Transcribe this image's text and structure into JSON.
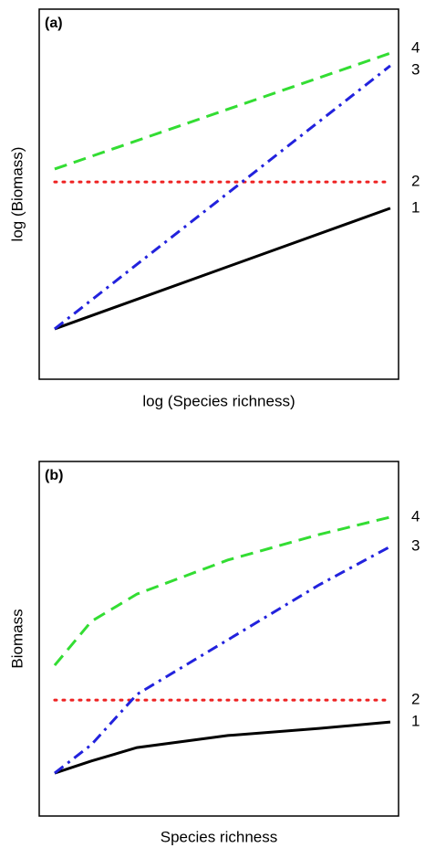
{
  "chart_data": [
    {
      "type": "line",
      "title": "(a)",
      "xlabel": "log (Species richness)",
      "ylabel": "log (Biomass)",
      "xlim": [
        0,
        100
      ],
      "ylim": [
        0,
        100
      ],
      "x": [
        4.3,
        97.7
      ],
      "series": [
        {
          "name": "1",
          "color": "#000000",
          "dash": "solid",
          "values": [
            13.6,
            46.2
          ]
        },
        {
          "name": "2",
          "color": "#ee2222",
          "dash": "dotted",
          "values": [
            53.3,
            53.3
          ]
        },
        {
          "name": "3",
          "color": "#2222dd",
          "dash": "dashdot",
          "values": [
            13.6,
            84.7
          ]
        },
        {
          "name": "4",
          "color": "#33dd33",
          "dash": "dashed",
          "values": [
            56.8,
            88.1
          ]
        }
      ]
    },
    {
      "type": "line",
      "title": "(b)",
      "xlabel": "Species richness",
      "ylabel": "Biomass",
      "xlim": [
        0,
        100
      ],
      "ylim": [
        0,
        100
      ],
      "x": [
        4.3,
        14.5,
        27.2,
        52.5,
        77.9,
        97.7
      ],
      "series": [
        {
          "name": "1",
          "color": "#000000",
          "dash": "solid",
          "values": [
            12.1,
            15.5,
            19.3,
            22.7,
            24.7,
            26.5
          ]
        },
        {
          "name": "2",
          "color": "#ee2222",
          "dash": "dotted",
          "values": [
            32.7,
            32.7,
            32.7,
            32.7,
            32.7,
            32.7
          ]
        },
        {
          "name": "3",
          "color": "#2222dd",
          "dash": "dashdot",
          "values": [
            12.1,
            20.1,
            34.3,
            49.7,
            65.2,
            76.0
          ]
        },
        {
          "name": "4",
          "color": "#33dd33",
          "dash": "dashed",
          "values": [
            42.5,
            54.9,
            62.6,
            72.2,
            79.4,
            84.3
          ]
        }
      ]
    }
  ]
}
